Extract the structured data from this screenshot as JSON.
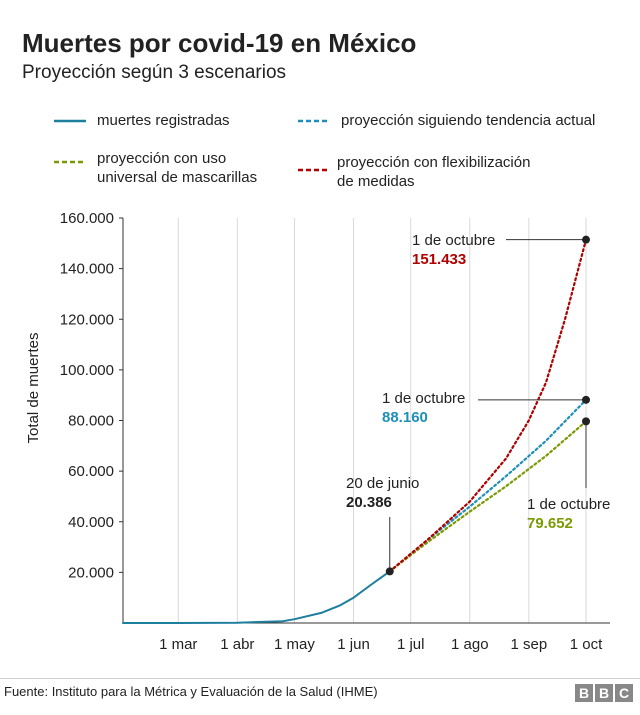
{
  "header": {
    "title": "Muertes por covid-19 en México",
    "subtitle": "Proyección según 3 escenarios"
  },
  "legend": [
    {
      "label": "muertes registradas",
      "color": "#1d7e9e",
      "style": "solid"
    },
    {
      "label": "proyección siguiendo tendencia actual",
      "color": "#1d8fb8",
      "style": "dashed"
    },
    {
      "label": "proyección con uso universal de mascarillas",
      "color": "#7a9a01",
      "style": "dashed"
    },
    {
      "label": "proyección con flexibilización de medidas",
      "color": "#b00000",
      "style": "dashed"
    }
  ],
  "chart_data": {
    "type": "line",
    "title": "Muertes por covid-19 en México",
    "subtitle": "Proyección según 3 escenarios",
    "ylabel": "Total de muertes",
    "xlabel": "",
    "ylim": [
      0,
      160000
    ],
    "y_ticks": [
      20000,
      40000,
      60000,
      80000,
      100000,
      120000,
      140000,
      160000
    ],
    "y_tick_labels": [
      "20.000",
      "40.000",
      "60.000",
      "80.000",
      "100.000",
      "120.000",
      "140.000",
      "160.000"
    ],
    "x_ticks": [
      "2020-03-01",
      "2020-04-01",
      "2020-05-01",
      "2020-06-01",
      "2020-07-01",
      "2020-08-01",
      "2020-09-01",
      "2020-10-01"
    ],
    "x_tick_labels": [
      "1 mar",
      "1 abr",
      "1 may",
      "1 jun",
      "1 jul",
      "1 ago",
      "1 sep",
      "1 oct"
    ],
    "xlim": [
      "2020-02-01",
      "2020-10-01"
    ],
    "grid": "vertical",
    "series": [
      {
        "name": "muertes registradas",
        "color": "#1d7e9e",
        "style": "solid",
        "points": [
          [
            "2020-02-01",
            0
          ],
          [
            "2020-03-01",
            0
          ],
          [
            "2020-04-01",
            100
          ],
          [
            "2020-04-25",
            700
          ],
          [
            "2020-05-01",
            1500
          ],
          [
            "2020-05-15",
            4000
          ],
          [
            "2020-05-25",
            7000
          ],
          [
            "2020-06-01",
            10000
          ],
          [
            "2020-06-10",
            15000
          ],
          [
            "2020-06-20",
            20386
          ]
        ]
      },
      {
        "name": "proyección siguiendo tendencia actual",
        "color": "#1d8fb8",
        "style": "dashed",
        "points": [
          [
            "2020-06-20",
            20386
          ],
          [
            "2020-07-10",
            33000
          ],
          [
            "2020-08-01",
            46000
          ],
          [
            "2020-08-20",
            58000
          ],
          [
            "2020-09-10",
            72000
          ],
          [
            "2020-10-01",
            88160
          ]
        ]
      },
      {
        "name": "proyección con uso universal de mascarillas",
        "color": "#7a9a01",
        "style": "dashed",
        "points": [
          [
            "2020-06-20",
            20386
          ],
          [
            "2020-07-10",
            32000
          ],
          [
            "2020-08-01",
            44000
          ],
          [
            "2020-08-20",
            54000
          ],
          [
            "2020-09-10",
            66000
          ],
          [
            "2020-10-01",
            79652
          ]
        ]
      },
      {
        "name": "proyección con flexibilización de medidas",
        "color": "#b00000",
        "style": "dashed",
        "points": [
          [
            "2020-06-20",
            20386
          ],
          [
            "2020-07-10",
            33000
          ],
          [
            "2020-08-01",
            48000
          ],
          [
            "2020-08-20",
            65000
          ],
          [
            "2020-09-01",
            80000
          ],
          [
            "2020-09-10",
            95000
          ],
          [
            "2020-09-20",
            120000
          ],
          [
            "2020-10-01",
            151433
          ]
        ]
      }
    ],
    "annotations": [
      {
        "date_label": "20 de junio",
        "value_label": "20.386",
        "x": "2020-06-20",
        "y": 20386,
        "color": "#222222"
      },
      {
        "date_label": "1 de octubre",
        "value_label": "151.433",
        "x": "2020-10-01",
        "y": 151433,
        "color": "#b00000"
      },
      {
        "date_label": "1 de octubre",
        "value_label": "88.160",
        "x": "2020-10-01",
        "y": 88160,
        "color": "#1d8fb8"
      },
      {
        "date_label": "1 de octubre",
        "value_label": "79.652",
        "x": "2020-10-01",
        "y": 79652,
        "color": "#7a9a01"
      }
    ]
  },
  "footer": {
    "source": "Fuente: Instituto para la Métrica y Evaluación de la Salud (IHME)",
    "logo_letters": [
      "B",
      "B",
      "C"
    ]
  }
}
